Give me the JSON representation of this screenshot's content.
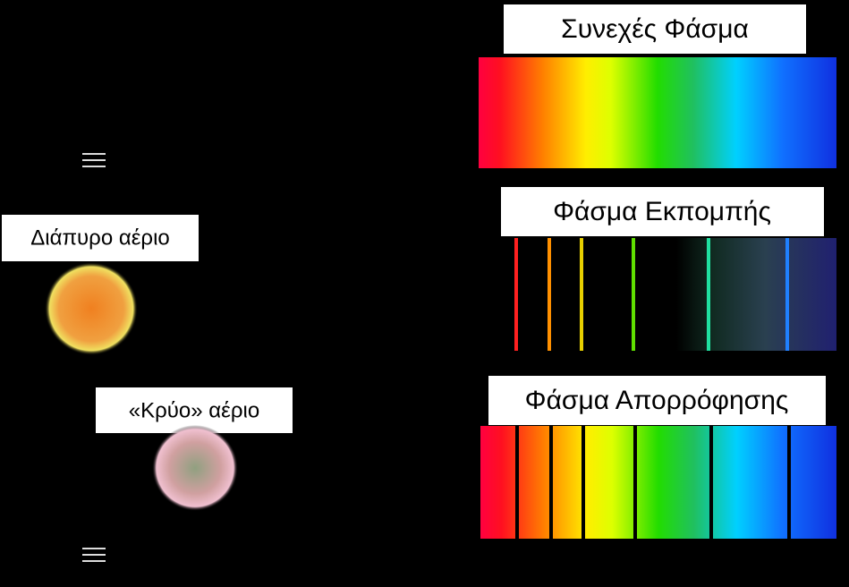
{
  "spectra": {
    "continuous": {
      "label": "Συνεχές Φάσμα"
    },
    "emission": {
      "label": "Φάσμα Εκπομπής"
    },
    "absorption": {
      "label": "Φάσμα Απορρόφησης"
    }
  },
  "sources": {
    "hot_gas": {
      "label": "Διάπυρο αέριο"
    },
    "cold_gas": {
      "label": "«Κρύο» αέριο"
    }
  }
}
